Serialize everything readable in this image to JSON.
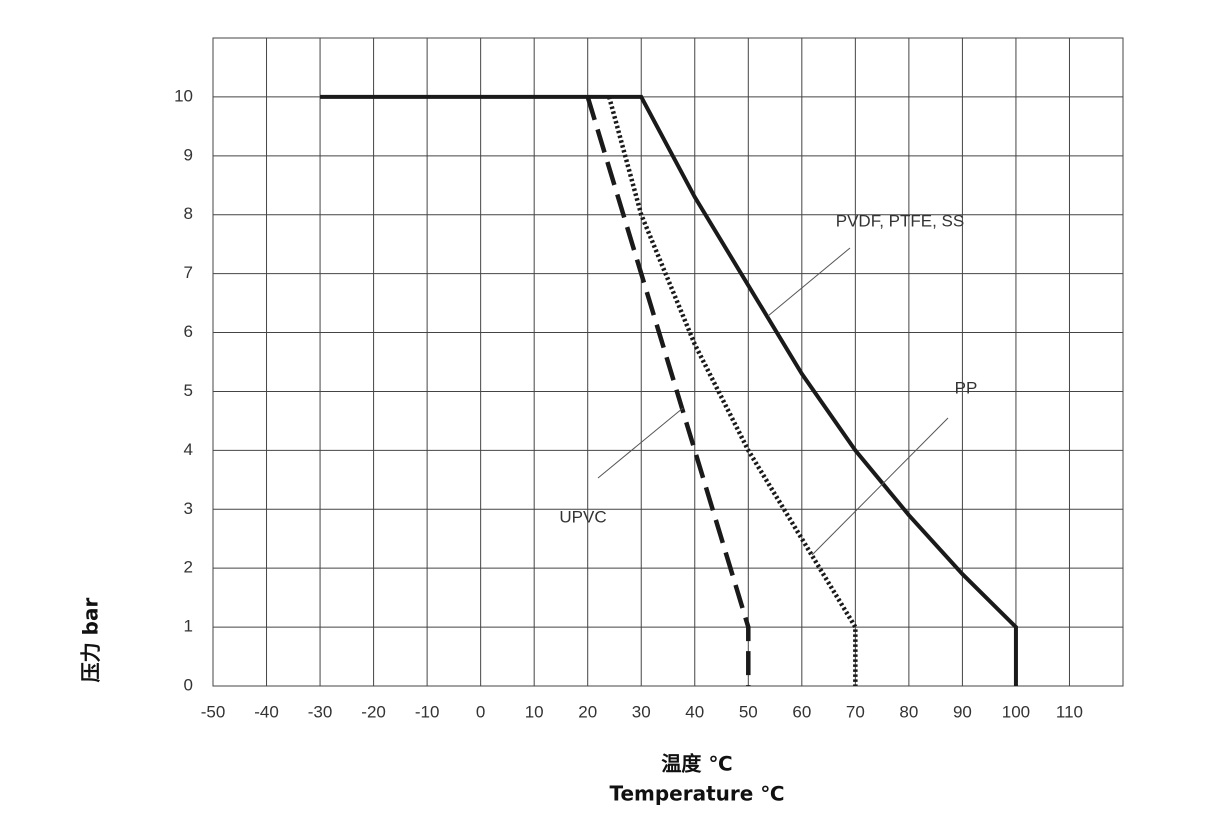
{
  "chart_data": {
    "type": "line",
    "x_label": "温度 ℃",
    "x_label_en": "Temperature ℃",
    "y_label": "压力 bar",
    "xlim": [
      -50,
      120
    ],
    "ylim": [
      0,
      11
    ],
    "xticks": [
      -50,
      -40,
      -30,
      -20,
      -10,
      0,
      10,
      20,
      30,
      40,
      50,
      60,
      70,
      80,
      90,
      100,
      110
    ],
    "yticks": [
      0,
      1,
      2,
      3,
      4,
      5,
      6,
      7,
      8,
      9,
      10
    ],
    "grid": true,
    "series": [
      {
        "name": "PVDF, PTFE, SS",
        "color": "#1a1a1a",
        "style": "solid",
        "x": [
          -30,
          30,
          40,
          50,
          60,
          70,
          80,
          90,
          100,
          100
        ],
        "values": [
          10,
          10,
          8.3,
          6.8,
          5.3,
          4.0,
          2.9,
          1.9,
          1,
          0
        ]
      },
      {
        "name": "PP",
        "color": "#1a1a1a",
        "style": "dotted",
        "x": [
          24,
          30,
          40,
          50,
          60,
          70,
          70
        ],
        "values": [
          10,
          8,
          5.8,
          4,
          2.5,
          1,
          0
        ]
      },
      {
        "name": "UPVC",
        "color": "#1a1a1a",
        "style": "dashed",
        "x": [
          20,
          50,
          50
        ],
        "values": [
          10,
          1,
          0
        ]
      }
    ]
  }
}
